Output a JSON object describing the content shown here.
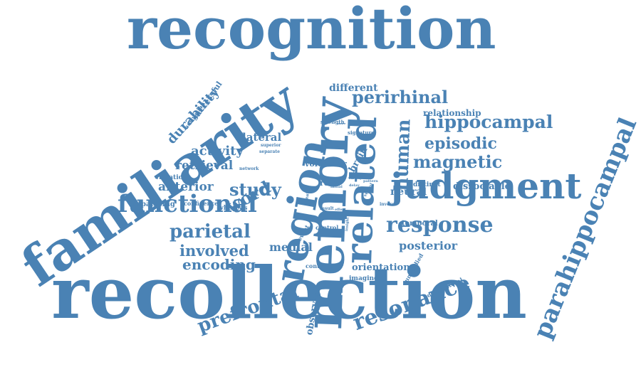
{
  "cloud": {
    "color": "#4a82b4",
    "background": "#ffffff",
    "words": [
      "recognition",
      "recollection",
      "familiarity",
      "memory",
      "region",
      "related",
      "judgment",
      "parahippocampal",
      "hippocampal",
      "functional",
      "response",
      "perirhinal",
      "resonance",
      "prefrontal",
      "parietal",
      "magnetic",
      "episodic",
      "human",
      "word",
      "study",
      "involved",
      "encoding",
      "durability",
      "activity",
      "retrieval",
      "anterior",
      "lateral",
      "medial",
      "different",
      "brain",
      "posterior",
      "orientation",
      "observed",
      "relationship",
      "dissociable",
      "temporal",
      "neural",
      "distinct",
      "volunteer",
      "role",
      "successful",
      "activation",
      "variation",
      "separating",
      "confidence",
      "whereas",
      "network",
      "superior",
      "separate",
      "strength",
      "signature",
      "bilateral",
      "imaging",
      "continuous",
      "control",
      "event",
      "unstudied",
      "dorsolateral",
      "greater",
      "variety",
      "pattern",
      "delay",
      "initial",
      "verbal",
      "inverse",
      "result",
      "effect",
      "insight",
      "more"
    ]
  }
}
